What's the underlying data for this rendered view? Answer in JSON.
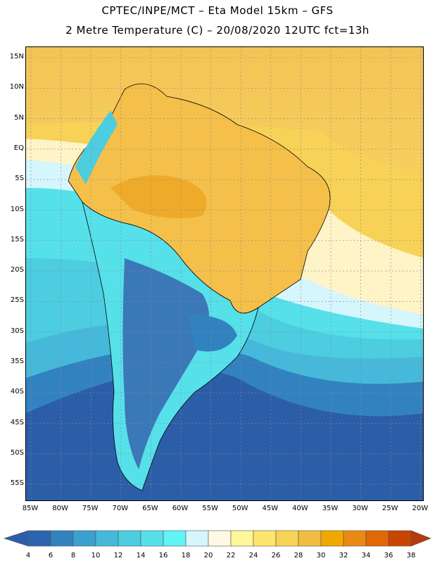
{
  "header": {
    "title_line1": "CPTEC/INPE/MCT –  Eta Model 15km – GFS",
    "title_line2": "2 Metre Temperature (C) – 20/08/2020 12UTC fct=13h"
  },
  "map": {
    "lat_labels": [
      "15N",
      "10N",
      "5N",
      "EQ",
      "5S",
      "10S",
      "15S",
      "20S",
      "25S",
      "30S",
      "35S",
      "40S",
      "45S",
      "50S",
      "55S"
    ],
    "lon_labels": [
      "85W",
      "80W",
      "75W",
      "70W",
      "65W",
      "60W",
      "55W",
      "50W",
      "45W",
      "40W",
      "35W",
      "30W",
      "25W",
      "20W"
    ]
  },
  "colorbar": {
    "labels": [
      "4",
      "6",
      "8",
      "10",
      "12",
      "14",
      "16",
      "18",
      "20",
      "22",
      "24",
      "26",
      "28",
      "30",
      "32",
      "34",
      "36",
      "38"
    ],
    "colors": [
      "#2d64ad",
      "#3382c0",
      "#3aa0cf",
      "#46b9da",
      "#4ccde0",
      "#56e0ea",
      "#60f4f4",
      "#d4f6fc",
      "#fff9e3",
      "#fff59a",
      "#fee56e",
      "#f8d256",
      "#f0bd40",
      "#f0a800",
      "#ea8a12",
      "#e06806",
      "#c84600"
    ],
    "end_low": "#2c5ea8",
    "end_high": "#b63a10"
  }
}
